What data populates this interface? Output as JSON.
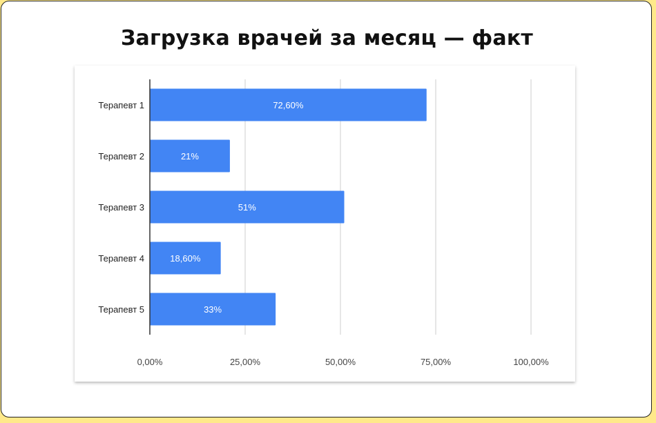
{
  "title": "Загрузка врачей за месяц — факт",
  "colors": {
    "bar": "#4285f4",
    "grid": "#cccccc",
    "axis": "#333333"
  },
  "chart_data": {
    "type": "bar",
    "orientation": "horizontal",
    "title": "Загрузка врачей за месяц — факт",
    "categories": [
      "Терапевт 1",
      "Терапевт 2",
      "Терапевт 3",
      "Терапевт 4",
      "Терапевт 5"
    ],
    "values": [
      72.6,
      21,
      51,
      18.6,
      33
    ],
    "data_labels": [
      "72,60%",
      "21%",
      "51%",
      "18,60%",
      "33%"
    ],
    "xlim": [
      0,
      100
    ],
    "xticks": [
      0,
      25,
      50,
      75,
      100
    ],
    "xtick_labels": [
      "0,00%",
      "25,00%",
      "50,00%",
      "75,00%",
      "100,00%"
    ],
    "grid": true,
    "legend": "none"
  }
}
